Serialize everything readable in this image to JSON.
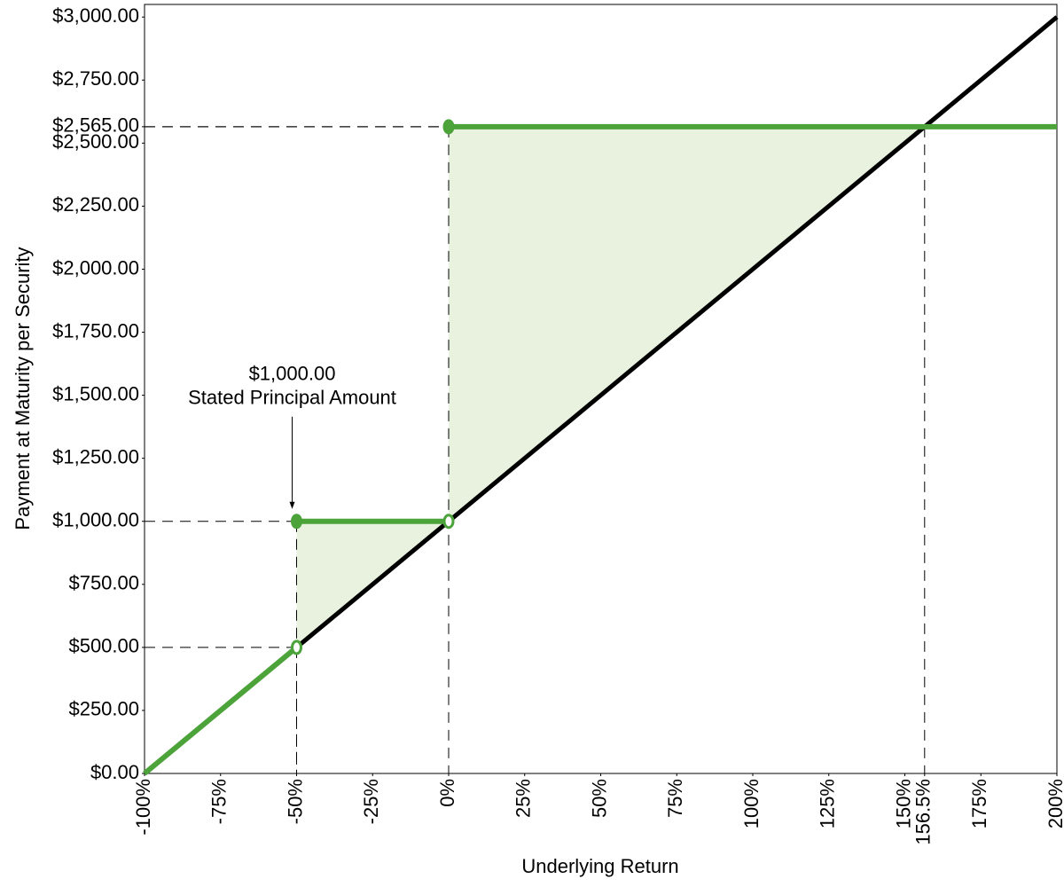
{
  "chart_data": {
    "type": "line",
    "x_label": "Underlying Return",
    "y_label": "Payment at Maturity per Security",
    "xlim": [
      -100,
      200
    ],
    "ylim": [
      0,
      3050
    ],
    "xticks": [
      {
        "value": -100,
        "label": "-100%"
      },
      {
        "value": -75,
        "label": "-75%"
      },
      {
        "value": -50,
        "label": "-50%"
      },
      {
        "value": -25,
        "label": "-25%"
      },
      {
        "value": 0,
        "label": "0%"
      },
      {
        "value": 25,
        "label": "25%"
      },
      {
        "value": 50,
        "label": "50%"
      },
      {
        "value": 75,
        "label": "75%"
      },
      {
        "value": 100,
        "label": "100%"
      },
      {
        "value": 125,
        "label": "125%"
      },
      {
        "value": 150,
        "label": "150%"
      },
      {
        "value": 156.5,
        "label": "156.5%"
      },
      {
        "value": 175,
        "label": "175%"
      },
      {
        "value": 200,
        "label": "200%"
      }
    ],
    "yticks": [
      {
        "value": 0,
        "label": "$0.00"
      },
      {
        "value": 250,
        "label": "$250.00"
      },
      {
        "value": 500,
        "label": "$500.00"
      },
      {
        "value": 750,
        "label": "$750.00"
      },
      {
        "value": 1000,
        "label": "$1,000.00"
      },
      {
        "value": 1250,
        "label": "$1,250.00"
      },
      {
        "value": 1500,
        "label": "$1,500.00"
      },
      {
        "value": 1750,
        "label": "$1,750.00"
      },
      {
        "value": 2000,
        "label": "$2,000.00"
      },
      {
        "value": 2250,
        "label": "$2,250.00"
      },
      {
        "value": 2500,
        "label": "$2,500.00"
      },
      {
        "value": 2565,
        "label": "$2,565.00"
      },
      {
        "value": 2750,
        "label": "$2,750.00"
      },
      {
        "value": 3000,
        "label": "$3,000.00"
      }
    ],
    "series": [
      {
        "color": "#000000",
        "x": [
          -100,
          200
        ],
        "values": [
          0,
          3000
        ]
      },
      {
        "color": "#4ba33a",
        "x": [
          -100,
          -50,
          -50,
          -50,
          0,
          0,
          0,
          200
        ],
        "values": [
          0,
          500,
          null,
          1000,
          1000,
          null,
          2565,
          2565
        ]
      }
    ],
    "shade_color": "#e8f2df",
    "annotation": [
      "$1,000.00",
      "Stated Principal Amount"
    ]
  }
}
